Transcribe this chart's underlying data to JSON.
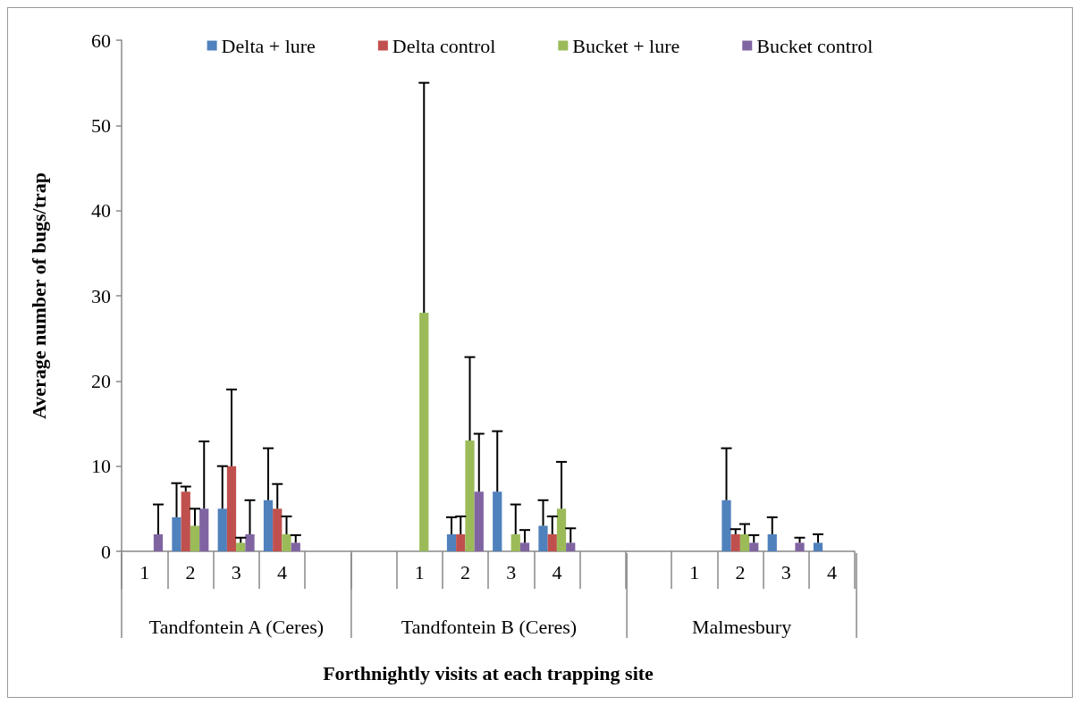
{
  "chart_data": {
    "type": "bar",
    "ylabel": "Average number of bugs/trap",
    "xlabel": "Forthnightly visits at each trapping site",
    "categories": [
      "1",
      "2",
      "3",
      "4",
      null,
      null,
      "1",
      "2",
      "3",
      "4",
      null,
      null,
      "1",
      "2",
      "3",
      "4"
    ],
    "annotations": [
      "Tandfontein A (Ceres)",
      "Tandfontein B (Ceres)",
      "Malmesbury"
    ],
    "ylim": [
      0,
      60
    ],
    "yticks": [
      0,
      10,
      20,
      30,
      40,
      50,
      60
    ],
    "legend": "top",
    "grid": false,
    "series": [
      {
        "name": "Delta + lure",
        "color": "#4f81bd",
        "values": [
          0,
          4,
          5,
          6,
          null,
          null,
          0,
          2,
          7,
          3,
          null,
          null,
          0,
          6,
          2,
          1
        ],
        "errors": [
          null,
          [
            4,
            8
          ],
          [
            5,
            10
          ],
          [
            6,
            12.1
          ],
          null,
          null,
          null,
          [
            2,
            4
          ],
          [
            7,
            14.1
          ],
          [
            3,
            6
          ],
          null,
          null,
          null,
          [
            6,
            12.1
          ],
          [
            2,
            4
          ],
          [
            1,
            2
          ]
        ]
      },
      {
        "name": "Delta control",
        "color": "#c0504d",
        "values": [
          0,
          7,
          10,
          5,
          null,
          null,
          0,
          2,
          0,
          2,
          null,
          null,
          0,
          2,
          0,
          0
        ],
        "errors": [
          null,
          [
            7,
            7.6
          ],
          [
            10,
            19
          ],
          [
            5,
            7.9
          ],
          null,
          null,
          null,
          [
            2,
            4.1
          ],
          null,
          [
            2,
            4.1
          ],
          null,
          null,
          null,
          [
            2,
            2.6
          ],
          null,
          null
        ]
      },
      {
        "name": "Bucket + lure",
        "color": "#9bbb59",
        "values": [
          0,
          3,
          1,
          2,
          null,
          null,
          28,
          13,
          2,
          5,
          null,
          null,
          0,
          2,
          0,
          0
        ],
        "errors": [
          null,
          [
            3,
            5
          ],
          [
            1,
            1.6
          ],
          [
            2,
            4.1
          ],
          null,
          null,
          [
            28,
            55
          ],
          [
            13,
            22.8
          ],
          [
            2,
            5.5
          ],
          [
            5,
            10.5
          ],
          null,
          null,
          null,
          [
            2,
            3.2
          ],
          null,
          null
        ]
      },
      {
        "name": "Bucket control",
        "color": "#8064a2",
        "values": [
          2,
          5,
          2,
          1,
          null,
          null,
          0,
          7,
          1,
          1,
          null,
          null,
          0,
          1,
          1,
          0
        ],
        "errors": [
          [
            2,
            5.5
          ],
          [
            5,
            12.9
          ],
          [
            2,
            6
          ],
          [
            1,
            1.9
          ],
          null,
          null,
          null,
          [
            7,
            13.8
          ],
          [
            1,
            2.5
          ],
          [
            1,
            2.7
          ],
          null,
          null,
          null,
          [
            1,
            1.9
          ],
          [
            1,
            1.6
          ],
          null
        ]
      }
    ]
  }
}
